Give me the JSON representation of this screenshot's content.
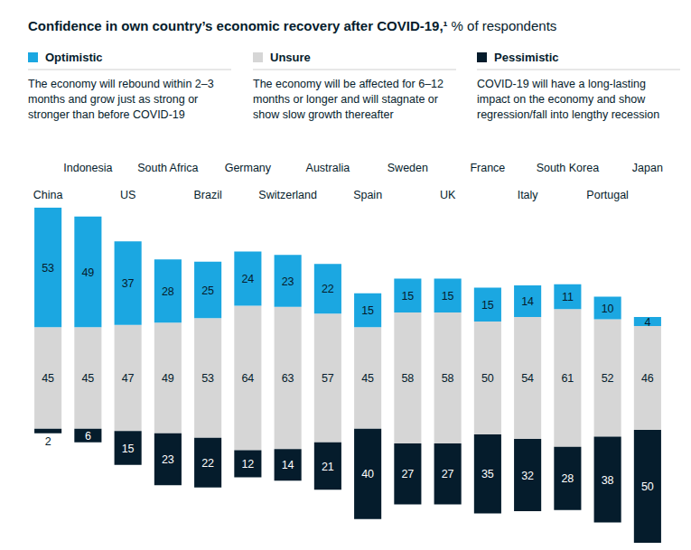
{
  "chart_data": {
    "type": "bar",
    "title": "Confidence in own country’s economic recovery after COVID-19,¹",
    "subtitle": "% of respondents",
    "categories": [
      "China",
      "Indonesia",
      "US",
      "South Africa",
      "Brazil",
      "Germany",
      "Switzerland",
      "Australia",
      "Spain",
      "Sweden",
      "UK",
      "France",
      "Italy",
      "South Korea",
      "Portugal",
      "Japan"
    ],
    "series": [
      {
        "name": "Optimistic",
        "color": "#1ba7e1",
        "description": "The economy will rebound within 2–3 months and grow just as strong or stronger than before COVID-19",
        "values": [
          53,
          49,
          37,
          28,
          25,
          24,
          23,
          22,
          15,
          15,
          15,
          15,
          14,
          11,
          10,
          4
        ]
      },
      {
        "name": "Unsure",
        "color": "#d6d6d6",
        "description": "The economy will be affected for 6–12 months or longer and will stagnate or show slow growth thereafter",
        "values": [
          45,
          45,
          47,
          49,
          53,
          64,
          63,
          57,
          45,
          58,
          58,
          50,
          54,
          61,
          52,
          46
        ]
      },
      {
        "name": "Pessimistic",
        "color": "#051c2c",
        "description": "COVID-19 will have a long-lasting impact on the economy and show regression/fall into lengthy recession",
        "values": [
          2,
          6,
          15,
          23,
          22,
          12,
          14,
          21,
          40,
          27,
          27,
          35,
          32,
          28,
          38,
          50
        ]
      }
    ],
    "stacked": true,
    "data_labels": true,
    "tick_labels": "x",
    "legend": "top"
  }
}
